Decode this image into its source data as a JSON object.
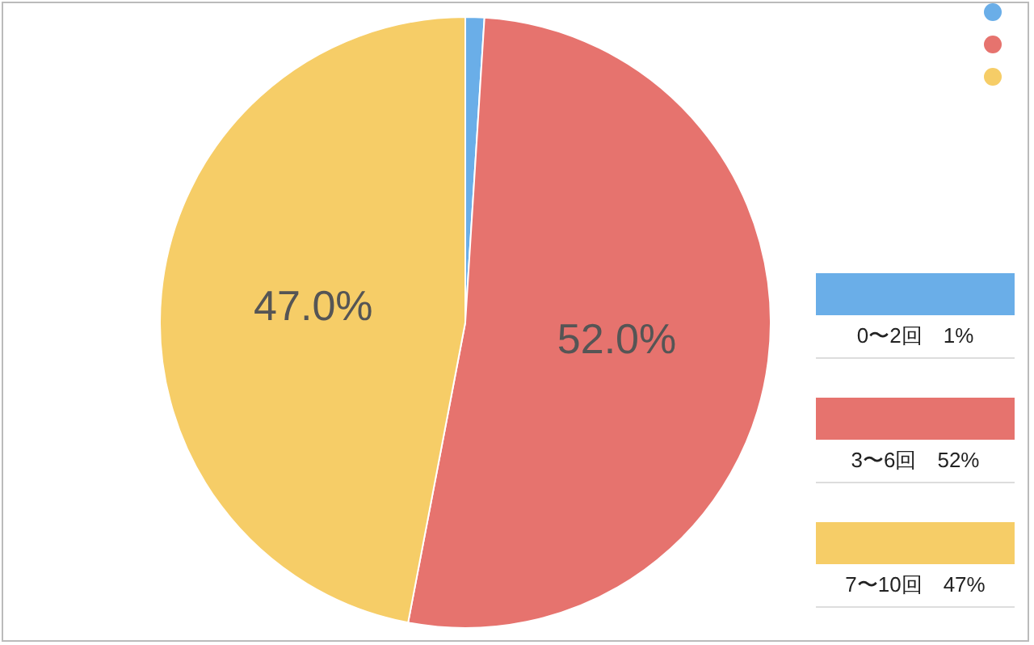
{
  "chart_data": {
    "type": "pie",
    "categories": [
      "0〜2回",
      "3〜6回",
      "7〜10回"
    ],
    "values": [
      1,
      52,
      47
    ],
    "colors": [
      "#6aaee8",
      "#e6736e",
      "#f6cd67"
    ],
    "value_labels": [
      null,
      "52.0%",
      "47.0%"
    ],
    "annotations": [
      "1%",
      "52%",
      "47%"
    ]
  }
}
